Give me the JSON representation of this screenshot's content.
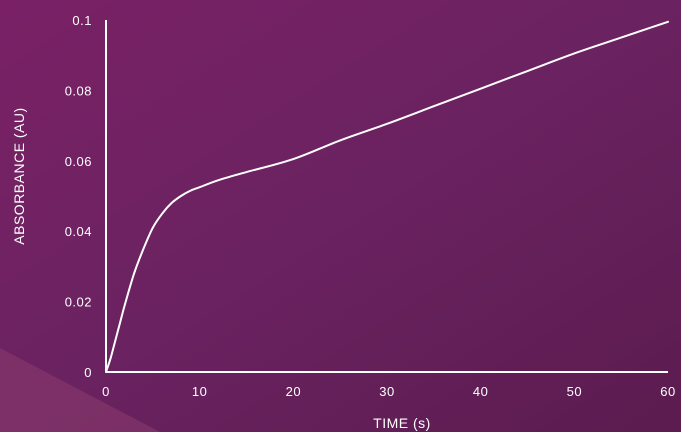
{
  "colors": {
    "background_top_left": "#7a2166",
    "background_mid": "#6a2260",
    "background_bottom_right": "#5b1c4f",
    "corner_shape": "#8a3c6e",
    "axis": "#ffffff",
    "line": "#ffffff",
    "text": "#ffffff"
  },
  "chart_data": {
    "type": "line",
    "title": "",
    "xlabel": "TIME (s)",
    "ylabel": "ABSORBANCE (AU)",
    "xlim": [
      0,
      60
    ],
    "ylim": [
      0,
      0.1
    ],
    "x_ticks": [
      0,
      10,
      20,
      30,
      40,
      50,
      60
    ],
    "x_tick_labels": [
      "0",
      "10",
      "20",
      "30",
      "40",
      "50",
      "60"
    ],
    "y_ticks": [
      0,
      0.02,
      0.04,
      0.06,
      0.08,
      0.1
    ],
    "y_tick_labels": [
      "0",
      "0.02",
      "0.04",
      "0.06",
      "0.08",
      "0.1"
    ],
    "grid": false,
    "legend": "none",
    "series": [
      {
        "x": [
          0,
          0.5,
          1,
          1.5,
          2,
          3,
          4,
          5,
          6,
          7,
          8,
          9,
          10,
          12,
          15,
          20,
          25,
          30,
          35,
          40,
          45,
          50,
          55,
          60
        ],
        "y": [
          0,
          0.004,
          0.009,
          0.014,
          0.019,
          0.028,
          0.035,
          0.041,
          0.045,
          0.048,
          0.05,
          0.0515,
          0.0525,
          0.0545,
          0.0568,
          0.0605,
          0.0658,
          0.0705,
          0.0755,
          0.0805,
          0.0855,
          0.0905,
          0.095,
          0.0995
        ]
      }
    ]
  }
}
